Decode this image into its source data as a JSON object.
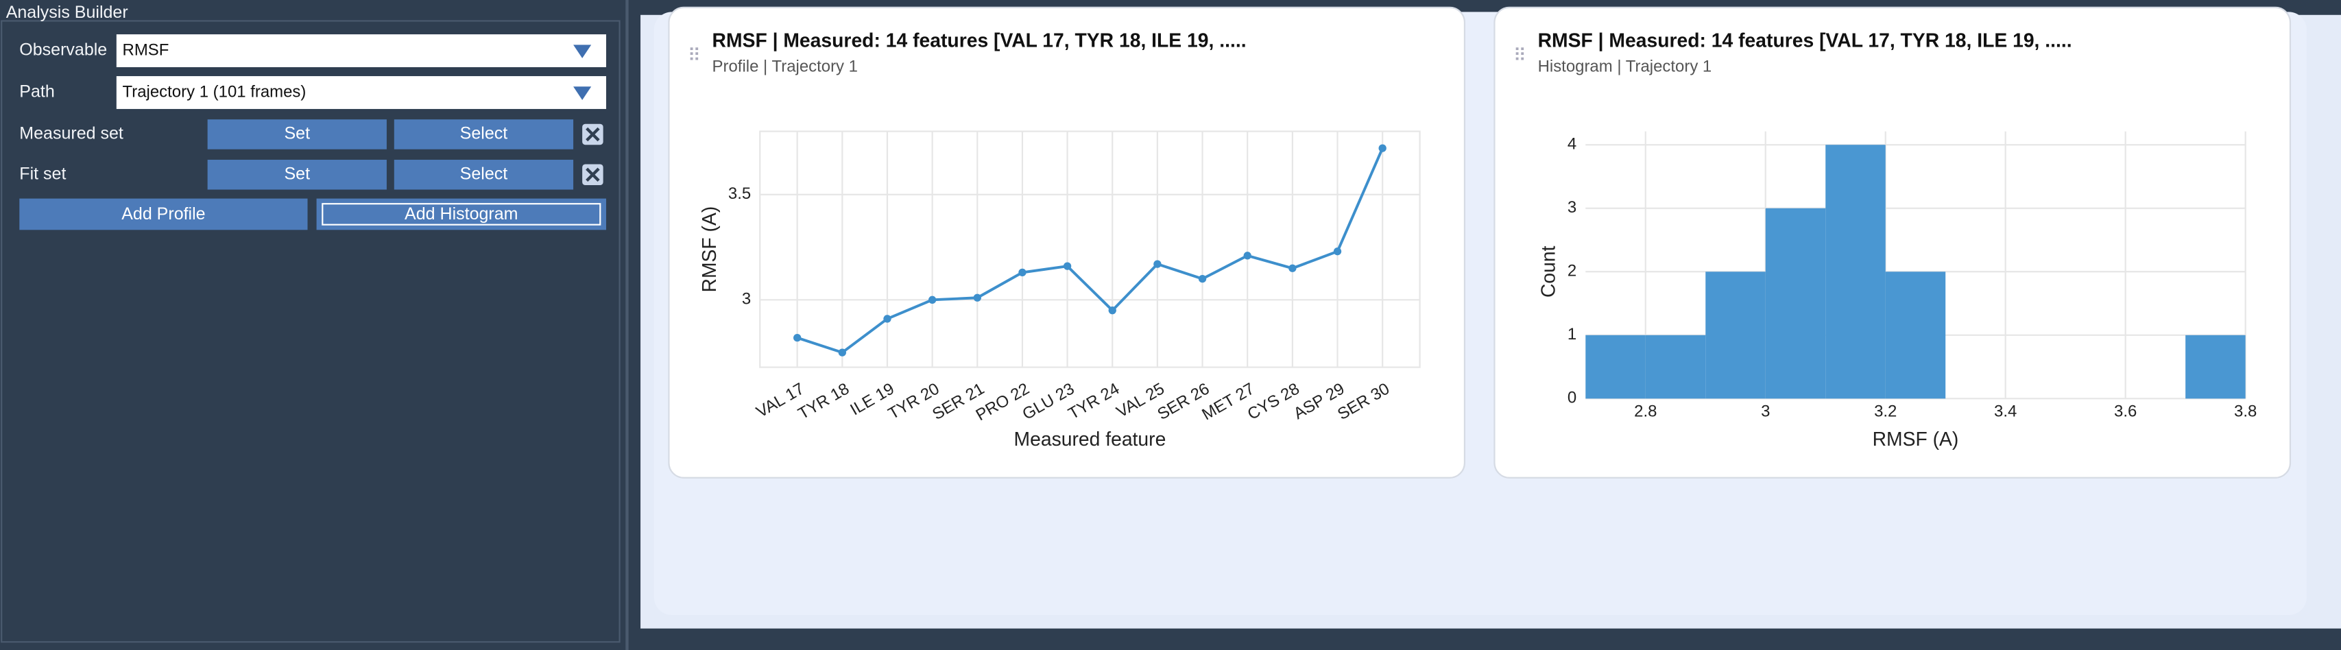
{
  "sidebar": {
    "title": "Analysis Builder",
    "observable": {
      "label": "Observable",
      "value": "RMSF"
    },
    "path": {
      "label": "Path",
      "value": "Trajectory 1 (101 frames)"
    },
    "measured_set": {
      "label": "Measured set",
      "set": "Set",
      "select": "Select"
    },
    "fit_set": {
      "label": "Fit set",
      "set": "Set",
      "select": "Select"
    },
    "add_profile": "Add Profile",
    "add_histogram": "Add Histogram"
  },
  "chart_data": [
    {
      "type": "line",
      "title": "RMSF | Measured: 14 features [VAL 17, TYR 18, ILE 19, .....",
      "subtitle": "Profile | Trajectory 1",
      "x_label": "Measured feature",
      "y_label": "RMSF (A)",
      "color": "#3d8fcc",
      "grid": true,
      "categories": [
        "VAL 17",
        "TYR 18",
        "ILE 19",
        "TYR 20",
        "SER 21",
        "PRO 22",
        "GLU 23",
        "TYR 24",
        "VAL 25",
        "SER 26",
        "MET 27",
        "CYS 28",
        "ASP 29",
        "SER 30"
      ],
      "values": [
        2.82,
        2.75,
        2.91,
        3.0,
        3.01,
        3.13,
        3.16,
        2.95,
        3.17,
        3.1,
        3.21,
        3.15,
        3.23,
        3.72
      ],
      "ylim": [
        2.68,
        3.8
      ],
      "yticks": [
        3,
        3.5
      ]
    },
    {
      "type": "histogram",
      "title": "RMSF | Measured: 14 features [VAL 17, TYR 18, ILE 19, .....",
      "subtitle": "Histogram | Trajectory 1",
      "x_label": "RMSF (A)",
      "y_label": "Count",
      "color": "#4a97d2",
      "grid": true,
      "bins": [
        2.7,
        2.8,
        2.9,
        3.0,
        3.1,
        3.2,
        3.3,
        3.4,
        3.5,
        3.6,
        3.7,
        3.8
      ],
      "values": [
        1,
        1,
        2,
        3,
        4,
        2,
        0,
        0,
        0,
        0,
        1
      ],
      "xlim": [
        2.7,
        3.8
      ],
      "xticks": [
        2.8,
        3,
        3.2,
        3.4,
        3.6,
        3.8
      ],
      "ylim": [
        0,
        4
      ],
      "yticks": [
        0,
        1,
        2,
        3,
        4
      ]
    }
  ]
}
